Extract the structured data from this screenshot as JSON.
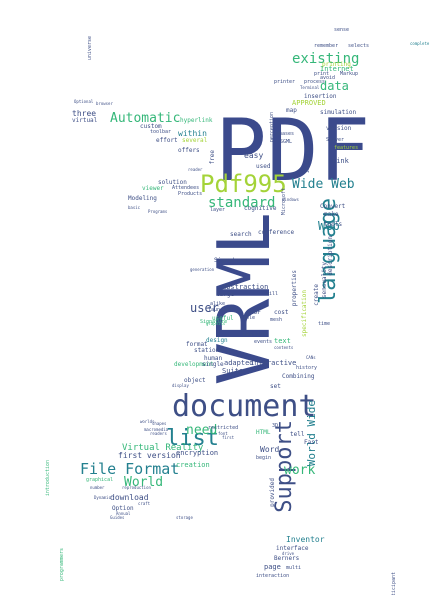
{
  "palette": {
    "navy": "#3b4a8c",
    "indigo": "#3e4f86",
    "teal": "#23808f",
    "green": "#35b779",
    "lime": "#a4d338",
    "yellowgreen": "#c7e020",
    "darkgreen": "#1f9e89",
    "purple": "#482878"
  },
  "words": [
    {
      "text": "PDF"
    },
    {
      "text": "VRML"
    },
    {
      "text": "document"
    },
    {
      "text": "Pdf995"
    },
    {
      "text": "language"
    },
    {
      "text": "Support"
    },
    {
      "text": "list"
    },
    {
      "text": "File Format"
    },
    {
      "text": "Wide Web"
    },
    {
      "text": "existing"
    },
    {
      "text": "Automatic"
    },
    {
      "text": "standard"
    },
    {
      "text": "need"
    },
    {
      "text": "World"
    },
    {
      "text": "work"
    },
    {
      "text": "data"
    },
    {
      "text": "user"
    },
    {
      "text": "Web"
    },
    {
      "text": "World Wide"
    },
    {
      "text": "Virtual Reality"
    },
    {
      "text": "first version"
    },
    {
      "text": "download"
    },
    {
      "text": "Inventor"
    },
    {
      "text": "within"
    },
    {
      "text": "three"
    },
    {
      "text": "hyperlink"
    },
    {
      "text": "virtual"
    },
    {
      "text": "custom"
    },
    {
      "text": "offers"
    },
    {
      "text": "easy"
    },
    {
      "text": "viewer"
    },
    {
      "text": "Modeling"
    },
    {
      "text": "solution"
    },
    {
      "text": "Internet"
    },
    {
      "text": "printing"
    },
    {
      "text": "insertion"
    },
    {
      "text": "simulation"
    },
    {
      "text": "version"
    },
    {
      "text": "link"
    },
    {
      "text": "Convert"
    },
    {
      "text": "make"
    },
    {
      "text": "tools"
    },
    {
      "text": "description"
    },
    {
      "text": "cognitive"
    },
    {
      "text": "conference"
    },
    {
      "text": "search"
    },
    {
      "text": "Signatures"
    },
    {
      "text": "abstraction"
    },
    {
      "text": "large"
    },
    {
      "text": "useful"
    },
    {
      "text": "design"
    },
    {
      "text": "stationery"
    },
    {
      "text": "development"
    },
    {
      "text": "format"
    },
    {
      "text": "human"
    },
    {
      "text": "adapted"
    },
    {
      "text": "Suite"
    },
    {
      "text": "single"
    },
    {
      "text": "object"
    },
    {
      "text": "interactive"
    },
    {
      "text": "Combining"
    },
    {
      "text": "encryption"
    },
    {
      "text": "creation"
    },
    {
      "text": "Word"
    },
    {
      "text": "page"
    },
    {
      "text": "interface"
    },
    {
      "text": "Option"
    },
    {
      "text": "interaction"
    },
    {
      "text": "graphical"
    },
    {
      "text": "specification"
    },
    {
      "text": "properties"
    },
    {
      "text": "create"
    },
    {
      "text": "sensuality"
    },
    {
      "text": "session"
    },
    {
      "text": "text"
    },
    {
      "text": "cost"
    },
    {
      "text": "set"
    },
    {
      "text": "tell"
    },
    {
      "text": "Fast"
    },
    {
      "text": "Berners"
    },
    {
      "text": "provided"
    },
    {
      "text": "multi"
    },
    {
      "text": "Server"
    },
    {
      "text": "features"
    },
    {
      "text": "selects"
    },
    {
      "text": "remember"
    },
    {
      "text": "sense"
    },
    {
      "text": "Markup"
    },
    {
      "text": "avoid"
    },
    {
      "text": "print"
    },
    {
      "text": "printer"
    },
    {
      "text": "process"
    },
    {
      "text": "APPROVED"
    },
    {
      "text": "map"
    },
    {
      "text": "effort"
    },
    {
      "text": "toolbar"
    },
    {
      "text": "several"
    },
    {
      "text": "free"
    },
    {
      "text": "integration"
    },
    {
      "text": "used"
    },
    {
      "text": "SGML"
    },
    {
      "text": "phases"
    },
    {
      "text": "perception"
    },
    {
      "text": "Microsoft"
    },
    {
      "text": "alike"
    },
    {
      "text": "launched"
    },
    {
      "text": "EOF"
    },
    {
      "text": "mesh"
    },
    {
      "text": "events"
    },
    {
      "text": "Signature"
    },
    {
      "text": "HTML"
    },
    {
      "text": "3D"
    },
    {
      "text": "history"
    },
    {
      "text": "universe"
    },
    {
      "text": "programmers"
    },
    {
      "text": "participant"
    },
    {
      "text": "introduction"
    },
    {
      "text": "Terminal"
    },
    {
      "text": "Products"
    },
    {
      "text": "Attendees"
    },
    {
      "text": "layer"
    },
    {
      "text": "table"
    },
    {
      "text": "time"
    },
    {
      "text": "will"
    },
    {
      "text": "graphics"
    },
    {
      "text": "generation"
    },
    {
      "text": "restricted"
    },
    {
      "text": "storage"
    },
    {
      "text": "number"
    },
    {
      "text": "reproduction"
    },
    {
      "text": "craft"
    },
    {
      "text": "Annual"
    },
    {
      "text": "complete"
    },
    {
      "text": "font"
    },
    {
      "text": "begin"
    },
    {
      "text": "first"
    },
    {
      "text": "shapes"
    },
    {
      "text": "readers"
    },
    {
      "text": "drive"
    },
    {
      "text": "Guides"
    },
    {
      "text": "Dynamic"
    },
    {
      "text": "display"
    },
    {
      "text": "contents"
    },
    {
      "text": "worlds"
    },
    {
      "text": "macromedia"
    },
    {
      "text": "windows"
    },
    {
      "text": "browser"
    },
    {
      "text": "basic"
    },
    {
      "text": "CANs"
    },
    {
      "text": "Optional"
    },
    {
      "text": "Programs"
    },
    {
      "text": "reader"
    }
  ]
}
